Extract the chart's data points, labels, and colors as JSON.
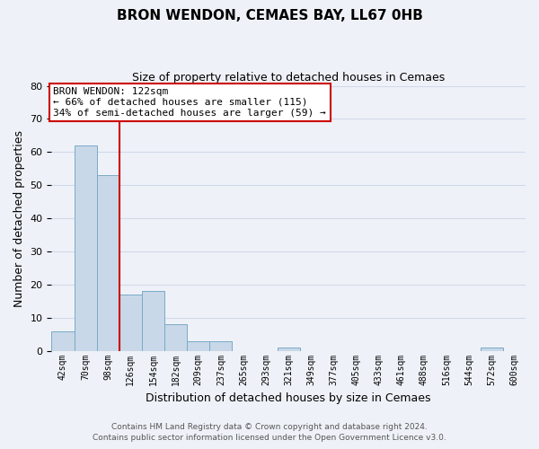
{
  "title": "BRON WENDON, CEMAES BAY, LL67 0HB",
  "subtitle": "Size of property relative to detached houses in Cemaes",
  "xlabel": "Distribution of detached houses by size in Cemaes",
  "ylabel": "Number of detached properties",
  "bar_labels": [
    "42sqm",
    "70sqm",
    "98sqm",
    "126sqm",
    "154sqm",
    "182sqm",
    "209sqm",
    "237sqm",
    "265sqm",
    "293sqm",
    "321sqm",
    "349sqm",
    "377sqm",
    "405sqm",
    "433sqm",
    "461sqm",
    "488sqm",
    "516sqm",
    "544sqm",
    "572sqm",
    "600sqm"
  ],
  "bar_values": [
    6,
    62,
    53,
    17,
    18,
    8,
    3,
    3,
    0,
    0,
    1,
    0,
    0,
    0,
    0,
    0,
    0,
    0,
    0,
    1,
    0
  ],
  "bar_color": "#c8d8e8",
  "bar_edge_color": "#7aaac8",
  "vline_x_index": 3,
  "vline_color": "#cc0000",
  "annotation_title": "BRON WENDON: 122sqm",
  "annotation_line1": "← 66% of detached houses are smaller (115)",
  "annotation_line2": "34% of semi-detached houses are larger (59) →",
  "annotation_box_color": "#ffffff",
  "annotation_box_edge": "#cc0000",
  "ylim": [
    0,
    80
  ],
  "yticks": [
    0,
    10,
    20,
    30,
    40,
    50,
    60,
    70,
    80
  ],
  "bg_color": "#f0f4f8",
  "footer1": "Contains HM Land Registry data © Crown copyright and database right 2024.",
  "footer2": "Contains public sector information licensed under the Open Government Licence v3.0."
}
